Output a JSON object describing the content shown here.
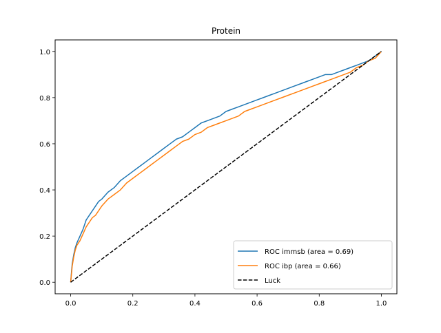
{
  "chart_data": {
    "type": "line",
    "title": "Protein",
    "xlabel": "",
    "ylabel": "",
    "xlim": [
      -0.05,
      1.05
    ],
    "ylim": [
      -0.05,
      1.05
    ],
    "xticks": [
      "0.0",
      "0.2",
      "0.4",
      "0.6",
      "0.8",
      "1.0"
    ],
    "yticks": [
      "0.0",
      "0.2",
      "0.4",
      "0.6",
      "0.8",
      "1.0"
    ],
    "xtick_values": [
      0.0,
      0.2,
      0.4,
      0.6,
      0.8,
      1.0
    ],
    "ytick_values": [
      0.0,
      0.2,
      0.4,
      0.6,
      0.8,
      1.0
    ],
    "grid": false,
    "legend_position": "lower-right",
    "series": [
      {
        "name": "ROC immsb (area = 0.69)",
        "color": "#1f77b4",
        "style": "solid",
        "x": [
          0.0,
          0.003,
          0.005,
          0.01,
          0.015,
          0.02,
          0.03,
          0.04,
          0.05,
          0.06,
          0.07,
          0.08,
          0.09,
          0.1,
          0.12,
          0.14,
          0.16,
          0.18,
          0.2,
          0.22,
          0.24,
          0.26,
          0.28,
          0.3,
          0.32,
          0.34,
          0.36,
          0.38,
          0.4,
          0.42,
          0.44,
          0.46,
          0.48,
          0.5,
          0.52,
          0.54,
          0.56,
          0.58,
          0.6,
          0.62,
          0.64,
          0.66,
          0.68,
          0.7,
          0.72,
          0.74,
          0.76,
          0.78,
          0.8,
          0.82,
          0.84,
          0.86,
          0.88,
          0.9,
          0.92,
          0.94,
          0.96,
          0.98,
          1.0
        ],
        "y": [
          0.0,
          0.05,
          0.08,
          0.12,
          0.15,
          0.17,
          0.2,
          0.23,
          0.27,
          0.29,
          0.31,
          0.33,
          0.35,
          0.36,
          0.39,
          0.41,
          0.44,
          0.46,
          0.48,
          0.5,
          0.52,
          0.54,
          0.56,
          0.58,
          0.6,
          0.62,
          0.63,
          0.65,
          0.67,
          0.69,
          0.7,
          0.71,
          0.72,
          0.74,
          0.75,
          0.76,
          0.77,
          0.78,
          0.79,
          0.8,
          0.81,
          0.82,
          0.83,
          0.84,
          0.85,
          0.86,
          0.87,
          0.88,
          0.89,
          0.9,
          0.9,
          0.91,
          0.92,
          0.93,
          0.94,
          0.95,
          0.96,
          0.98,
          1.0
        ]
      },
      {
        "name": "ROC ibp (area = 0.66)",
        "color": "#ff7f0e",
        "style": "solid",
        "x": [
          0.0,
          0.003,
          0.005,
          0.01,
          0.015,
          0.02,
          0.03,
          0.04,
          0.05,
          0.06,
          0.07,
          0.08,
          0.09,
          0.1,
          0.12,
          0.14,
          0.16,
          0.18,
          0.2,
          0.22,
          0.24,
          0.26,
          0.28,
          0.3,
          0.32,
          0.34,
          0.36,
          0.38,
          0.4,
          0.42,
          0.44,
          0.46,
          0.48,
          0.5,
          0.52,
          0.54,
          0.56,
          0.58,
          0.6,
          0.62,
          0.64,
          0.66,
          0.68,
          0.7,
          0.72,
          0.74,
          0.76,
          0.78,
          0.8,
          0.82,
          0.84,
          0.86,
          0.88,
          0.9,
          0.92,
          0.94,
          0.96,
          0.98,
          1.0
        ],
        "y": [
          0.0,
          0.04,
          0.07,
          0.11,
          0.14,
          0.16,
          0.18,
          0.21,
          0.24,
          0.26,
          0.28,
          0.29,
          0.31,
          0.33,
          0.36,
          0.38,
          0.4,
          0.43,
          0.45,
          0.47,
          0.49,
          0.51,
          0.53,
          0.55,
          0.57,
          0.59,
          0.61,
          0.62,
          0.64,
          0.65,
          0.67,
          0.68,
          0.69,
          0.7,
          0.71,
          0.72,
          0.74,
          0.75,
          0.76,
          0.77,
          0.78,
          0.79,
          0.8,
          0.81,
          0.82,
          0.83,
          0.84,
          0.85,
          0.86,
          0.87,
          0.88,
          0.89,
          0.9,
          0.91,
          0.93,
          0.94,
          0.96,
          0.97,
          1.0
        ]
      },
      {
        "name": "Luck",
        "color": "#000000",
        "style": "dashed",
        "x": [
          0.0,
          1.0
        ],
        "y": [
          0.0,
          1.0
        ]
      }
    ]
  }
}
